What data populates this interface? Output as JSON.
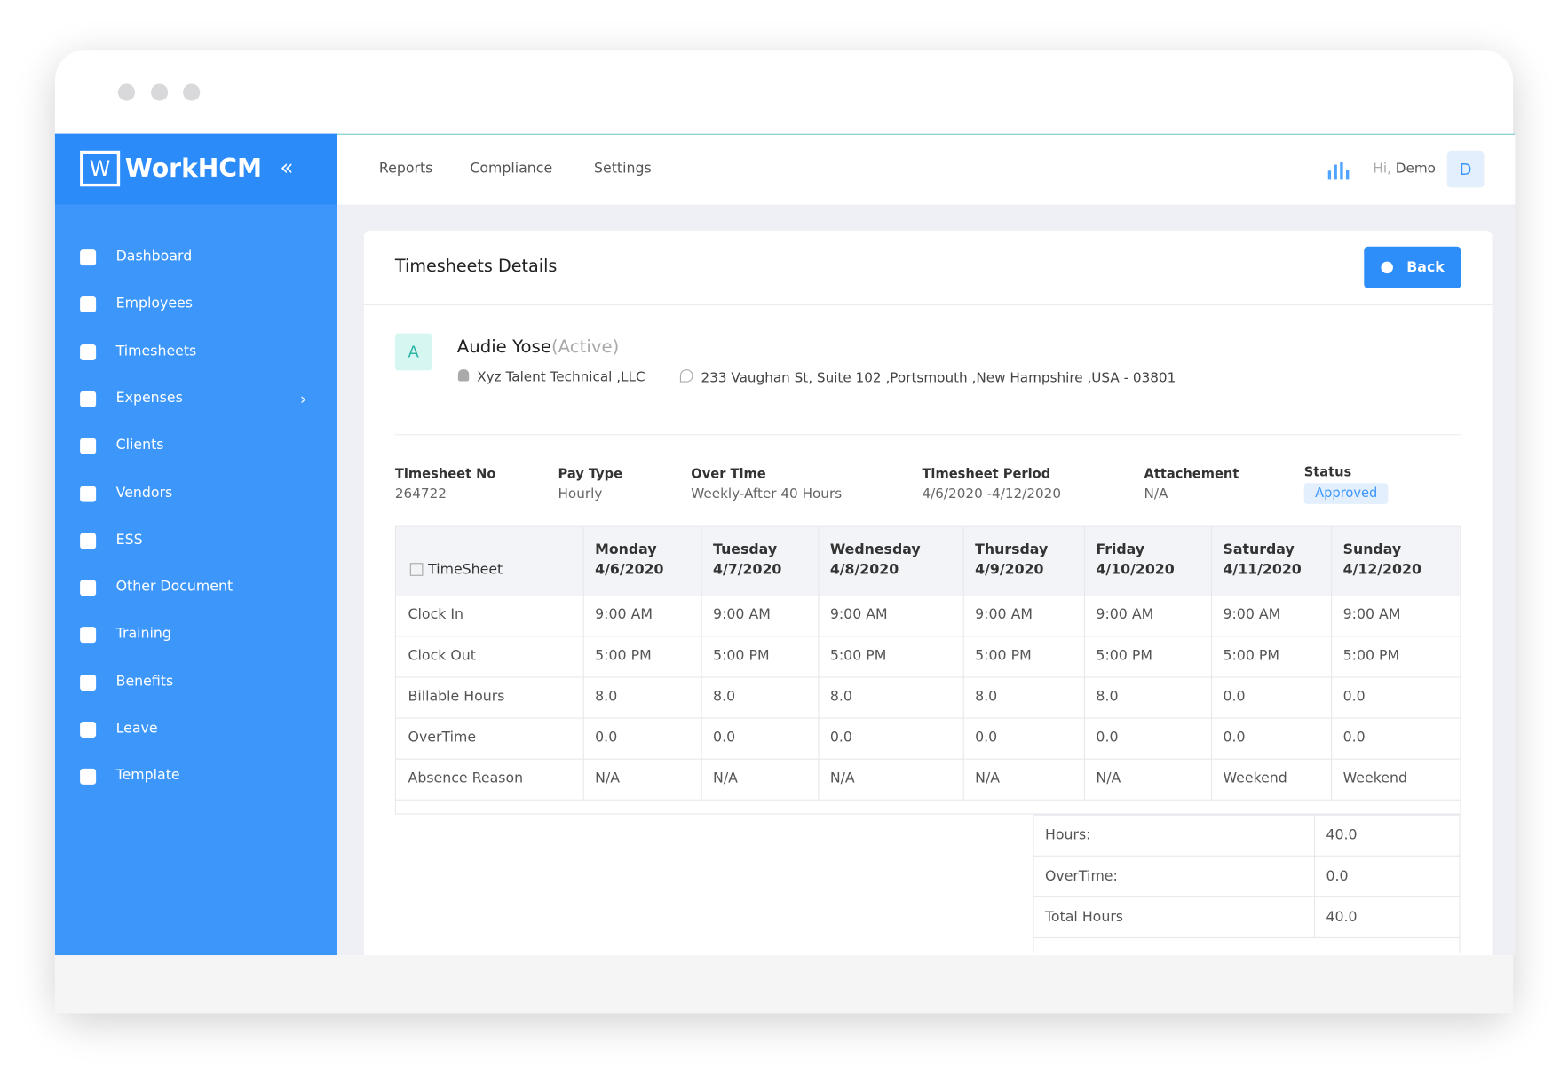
{
  "logo": {
    "mark": "W",
    "name": "WorkHCM"
  },
  "sidebar": [
    "Dashboard",
    "Employees",
    "Timesheets",
    "Expenses",
    "Clients",
    "Vendors",
    "ESS",
    "Other Document",
    "Training",
    "Benefits",
    "Leave",
    "Template"
  ],
  "top_nav": [
    "Reports",
    "Compliance",
    "Settings"
  ],
  "user": {
    "greeting": "Hi,",
    "name": "Demo",
    "avatar": "D"
  },
  "page": {
    "title": "Timesheets Details",
    "back": "Back"
  },
  "employee": {
    "avatar": "A",
    "name": "Audie Yose",
    "status": "(Active)",
    "company": "Xyz Talent Technical ,LLC",
    "address": "233 Vaughan St, Suite 102 ,Portsmouth ,New Hampshire ,USA - 03801"
  },
  "meta": [
    {
      "label": "Timesheet No",
      "value": "264722"
    },
    {
      "label": "Pay Type",
      "value": "Hourly"
    },
    {
      "label": "Over Time",
      "value": "Weekly-After 40 Hours"
    },
    {
      "label": "Timesheet Period",
      "value": "4/6/2020 -4/12/2020"
    },
    {
      "label": "Attachement",
      "value": "N/A"
    },
    {
      "label": "Status",
      "value": "Approved"
    }
  ],
  "table": {
    "corner": "TimeSheet",
    "days": [
      {
        "day": "Monday",
        "date": "4/6/2020"
      },
      {
        "day": "Tuesday",
        "date": "4/7/2020"
      },
      {
        "day": "Wednesday",
        "date": "4/8/2020"
      },
      {
        "day": "Thursday",
        "date": "4/9/2020"
      },
      {
        "day": "Friday",
        "date": "4/10/2020"
      },
      {
        "day": "Saturday",
        "date": "4/11/2020"
      },
      {
        "day": "Sunday",
        "date": "4/12/2020"
      }
    ],
    "rows": [
      {
        "label": "Clock In",
        "values": [
          "9:00 AM",
          "9:00 AM",
          "9:00 AM",
          "9:00 AM",
          "9:00 AM",
          "9:00 AM",
          "9:00 AM"
        ]
      },
      {
        "label": "Clock Out",
        "values": [
          "5:00 PM",
          "5:00 PM",
          "5:00 PM",
          "5:00 PM",
          "5:00 PM",
          "5:00 PM",
          "5:00 PM"
        ]
      },
      {
        "label": "Billable Hours",
        "values": [
          "8.0",
          "8.0",
          "8.0",
          "8.0",
          "8.0",
          "0.0",
          "0.0"
        ]
      },
      {
        "label": "OverTime",
        "values": [
          "0.0",
          "0.0",
          "0.0",
          "0.0",
          "0.0",
          "0.0",
          "0.0"
        ]
      },
      {
        "label": "Absence Reason",
        "values": [
          "N/A",
          "N/A",
          "N/A",
          "N/A",
          "N/A",
          "Weekend",
          "Weekend"
        ]
      }
    ]
  },
  "summary": [
    {
      "label": "Hours:",
      "value": "40.0"
    },
    {
      "label": "OverTime:",
      "value": "0.0"
    },
    {
      "label": "Total Hours",
      "value": "40.0"
    }
  ]
}
